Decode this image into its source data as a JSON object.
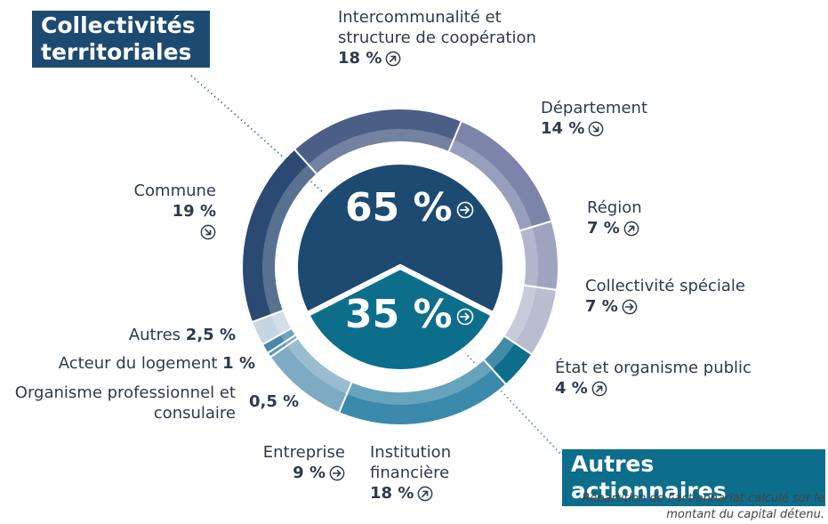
{
  "chart_data": {
    "type": "donut",
    "categories": [
      "Intercommunalité et structure de coopération",
      "Département",
      "Région",
      "Collectivité spéciale",
      "État et organisme public",
      "Institution financière",
      "Entreprise",
      "Organisme professionnel et consulaire",
      "Acteur du logement",
      "Autres",
      "Commune"
    ],
    "values": [
      18,
      14,
      7,
      7,
      4,
      18,
      9,
      0.5,
      1,
      2.5,
      19
    ],
    "value_labels": [
      "18 %",
      "14 %",
      "7 %",
      "7 %",
      "4 %",
      "18 %",
      "9 %",
      "0,5 %",
      "1 %",
      "2,5 %",
      "19 %"
    ],
    "trends": [
      "up",
      "down",
      "up",
      "right",
      "up",
      "up",
      "right",
      null,
      null,
      null,
      "down"
    ],
    "colors": [
      "#4b5f86",
      "#7c85a9",
      "#9ea3bf",
      "#b9bdd0",
      "#0d6e8c",
      "#3b89ab",
      "#7eaac4",
      "#5e97b8",
      "#4a86a8",
      "#c4d6e3",
      "#2a4a73"
    ],
    "groups": [
      {
        "name": "Collectivités territoriales",
        "value": 65,
        "value_label": "65 %",
        "trend": "right",
        "color": "#1d4a70"
      },
      {
        "name": "Autres actionnaires",
        "value": 35,
        "value_label": "35 %",
        "trend": "right",
        "color": "#0d6e8c"
      }
    ],
    "note": "Répartition de l’actionnariat calculé sur le montant du capital détenu."
  }
}
